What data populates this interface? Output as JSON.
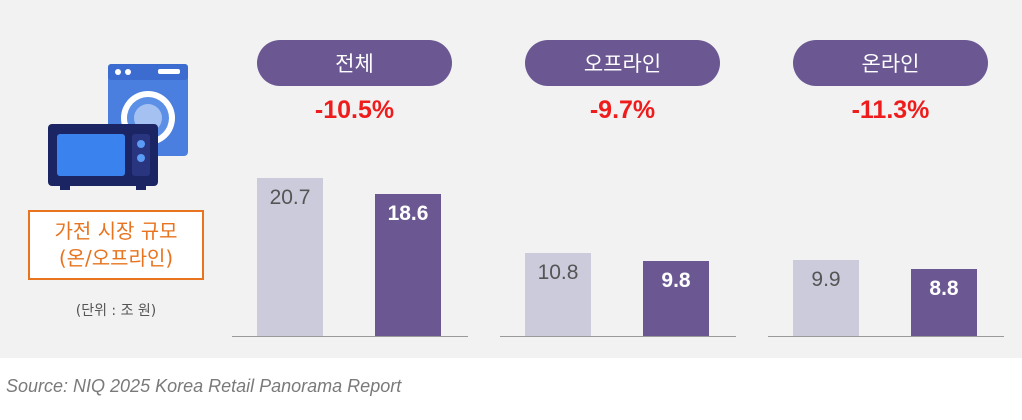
{
  "chart_data": {
    "type": "bar",
    "legend_box": {
      "line1": "가전 시장 규모",
      "line2": "(온/오프라인)"
    },
    "unit": "(단위 : 조 원)",
    "groups": [
      {
        "title": "전체",
        "change": "-10.5%",
        "prev": 20.7,
        "curr": 18.6,
        "prev_label": "20.7",
        "curr_label": "18.6"
      },
      {
        "title": "오프라인",
        "change": "-9.7%",
        "prev": 10.8,
        "curr": 9.8,
        "prev_label": "10.8",
        "curr_label": "9.8"
      },
      {
        "title": "온라인",
        "change": "-11.3%",
        "prev": 9.9,
        "curr": 8.8,
        "prev_label": "9.9",
        "curr_label": "8.8"
      }
    ],
    "colors": {
      "prev": "#cbcbdc",
      "curr": "#6b5893",
      "change": "#ee1c1c",
      "legend": "#e8741f"
    }
  },
  "source": "Source: NIQ 2025 Korea Retail Panorama Report"
}
